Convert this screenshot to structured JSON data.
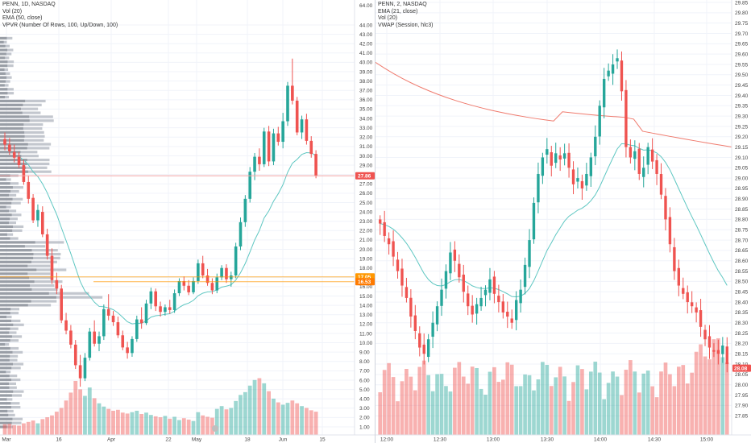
{
  "left_chart": {
    "header": [
      "PENN, 1D, NASDAQ",
      "Vol (20)",
      "EMA (50, close)",
      "VPVR (Number Of Rows, 100, Up/Down, 100)"
    ],
    "price_label": "27.86",
    "orange_label_1": "17.05",
    "orange_label_2": "16.53"
  },
  "right_chart": {
    "header": [
      "PENN, 2, NASDAQ",
      "EMA (21, close)",
      "Vol (20)",
      "VWAP (Session, hlc3)"
    ],
    "price_label": "28.08"
  },
  "colors": {
    "up": "#26a69a",
    "down": "#ef5350",
    "ema": "#5fc7c2",
    "vwap": "#ef7a6d",
    "orange": "#ff9800",
    "vpvr": "#9e9e9e",
    "grid": "#f0f3fa"
  },
  "chart_data": [
    {
      "type": "candlestick",
      "title": "PENN, 1D, NASDAQ",
      "ylim": [
        0,
        65
      ],
      "y_ticks": [
        "1.00",
        "2.00",
        "3.00",
        "4.00",
        "5.00",
        "6.00",
        "7.00",
        "8.00",
        "9.00",
        "10.00",
        "11.00",
        "12.00",
        "13.00",
        "14.00",
        "15.00",
        "16.00",
        "17.00",
        "18.00",
        "19.00",
        "20.00",
        "21.00",
        "22.00",
        "23.00",
        "24.00",
        "25.00",
        "26.00",
        "27.00",
        "28.00",
        "29.00",
        "30.00",
        "31.00",
        "32.00",
        "33.00",
        "34.00",
        "35.00",
        "36.00",
        "37.00",
        "38.00",
        "39.00",
        "40.00",
        "41.00",
        "42.00",
        "43.00",
        "44.00"
      ],
      "y_ticks_compressed_top": [
        "64.00"
      ],
      "x_ticks": [
        "Mar",
        "16",
        "Apr",
        "22",
        "May",
        "18",
        "Jun",
        "15"
      ],
      "candles_ohlc": [
        [
          31.8,
          32.5,
          30.6,
          31.2
        ],
        [
          31.2,
          31.9,
          30.1,
          30.5
        ],
        [
          30.4,
          31.2,
          29.3,
          29.8
        ],
        [
          29.9,
          30.4,
          28.7,
          29.0
        ],
        [
          29.0,
          29.6,
          26.9,
          27.2
        ],
        [
          27.2,
          27.9,
          24.9,
          25.4
        ],
        [
          25.5,
          25.9,
          22.8,
          23.1
        ],
        [
          23.1,
          24.8,
          22.4,
          24.2
        ],
        [
          24.0,
          24.6,
          21.3,
          21.6
        ],
        [
          21.6,
          22.2,
          18.9,
          19.3
        ],
        [
          19.3,
          20.1,
          16.3,
          16.7
        ],
        [
          16.7,
          17.5,
          15.2,
          15.8
        ],
        [
          15.8,
          16.2,
          12.1,
          12.4
        ],
        [
          12.4,
          13.2,
          10.9,
          11.3
        ],
        [
          11.3,
          11.9,
          9.4,
          9.8
        ],
        [
          9.8,
          10.3,
          7.2,
          7.6
        ],
        [
          7.6,
          8.7,
          5.3,
          6.2
        ],
        [
          6.2,
          8.9,
          5.9,
          8.4
        ],
        [
          8.4,
          11.6,
          8.1,
          11.2
        ],
        [
          11.2,
          12.4,
          9.6,
          9.9
        ],
        [
          9.9,
          11.2,
          9.1,
          10.7
        ],
        [
          10.7,
          14.1,
          10.3,
          13.6
        ],
        [
          13.6,
          15.2,
          12.4,
          12.9
        ],
        [
          12.9,
          13.4,
          11.8,
          12.2
        ],
        [
          12.2,
          12.8,
          10.5,
          10.8
        ],
        [
          10.8,
          11.3,
          9.2,
          9.5
        ],
        [
          9.5,
          10.1,
          8.3,
          8.9
        ],
        [
          8.9,
          10.7,
          8.5,
          10.4
        ],
        [
          10.4,
          12.9,
          10.1,
          12.5
        ],
        [
          12.5,
          13.8,
          11.5,
          12.1
        ],
        [
          12.1,
          14.6,
          11.9,
          14.2
        ],
        [
          14.2,
          15.9,
          13.6,
          15.5
        ],
        [
          15.5,
          15.8,
          13.4,
          13.9
        ],
        [
          13.9,
          14.4,
          12.8,
          13.3
        ],
        [
          13.3,
          14.1,
          12.9,
          13.8
        ],
        [
          13.8,
          14.6,
          13.1,
          13.5
        ],
        [
          13.5,
          15.7,
          13.2,
          15.3
        ],
        [
          15.3,
          16.9,
          15.0,
          16.6
        ],
        [
          16.6,
          17.1,
          15.6,
          16.1
        ],
        [
          16.1,
          16.7,
          15.1,
          15.4
        ],
        [
          15.4,
          17.0,
          15.2,
          16.6
        ],
        [
          16.6,
          18.9,
          16.3,
          18.5
        ],
        [
          18.5,
          19.3,
          16.9,
          17.2
        ],
        [
          17.2,
          17.9,
          16.1,
          16.4
        ],
        [
          16.4,
          16.9,
          15.2,
          15.6
        ],
        [
          15.6,
          17.4,
          15.3,
          17.0
        ],
        [
          17.0,
          18.3,
          16.7,
          18.0
        ],
        [
          18.0,
          18.4,
          16.4,
          16.8
        ],
        [
          16.8,
          17.6,
          16.0,
          17.2
        ],
        [
          17.2,
          20.7,
          16.9,
          20.3
        ],
        [
          20.3,
          23.4,
          19.9,
          22.9
        ],
        [
          22.9,
          25.8,
          22.4,
          25.4
        ],
        [
          25.4,
          28.8,
          25.0,
          28.3
        ],
        [
          28.3,
          30.3,
          27.4,
          29.9
        ],
        [
          29.9,
          30.8,
          28.4,
          29.1
        ],
        [
          29.1,
          33.0,
          28.8,
          32.6
        ],
        [
          32.6,
          33.2,
          28.9,
          29.4
        ],
        [
          29.4,
          32.9,
          29.0,
          32.4
        ],
        [
          32.4,
          33.1,
          31.1,
          31.5
        ],
        [
          31.5,
          34.6,
          30.8,
          33.7
        ],
        [
          33.7,
          37.9,
          33.2,
          37.5
        ],
        [
          37.5,
          40.4,
          35.5,
          35.9
        ],
        [
          35.9,
          36.3,
          32.2,
          32.5
        ],
        [
          32.5,
          34.3,
          31.8,
          33.9
        ],
        [
          33.9,
          34.5,
          31.2,
          31.6
        ],
        [
          31.6,
          32.1,
          29.8,
          30.2
        ],
        [
          30.2,
          30.6,
          27.6,
          27.86
        ]
      ],
      "volume_M": [
        2.3,
        2.4,
        2.1,
        2.0,
        2.5,
        2.8,
        3.1,
        2.5,
        3.4,
        3.8,
        4.2,
        5.0,
        5.8,
        7.4,
        9.1,
        11.6,
        9.8,
        8.4,
        10.2,
        7.9,
        6.8,
        6.1,
        5.6,
        5.2,
        5.4,
        4.8,
        4.6,
        4.9,
        5.2,
        4.5,
        4.8,
        4.3,
        4.0,
        3.8,
        4.1,
        3.5,
        3.9,
        3.2,
        3.6,
        3.3,
        3.0,
        4.9,
        4.2,
        3.9,
        3.7,
        5.6,
        6.2,
        5.5,
        5.8,
        7.3,
        8.6,
        9.2,
        10.6,
        11.8,
        12.2,
        11.1,
        9.4,
        7.8,
        7.0,
        6.5,
        6.9,
        7.4,
        6.8,
        6.2,
        5.8,
        5.3,
        5.0
      ]
    },
    {
      "type": "candlestick",
      "title": "PENN, 2, NASDAQ",
      "ylim": [
        27.8,
        29.85
      ],
      "y_ticks": [
        "27.85",
        "27.90",
        "27.95",
        "28.00",
        "28.05",
        "28.10",
        "28.15",
        "28.20",
        "28.25",
        "28.30",
        "28.35",
        "28.40",
        "28.45",
        "28.50",
        "28.55",
        "28.60",
        "28.65",
        "28.70",
        "28.75",
        "28.80",
        "28.85",
        "28.90",
        "28.95",
        "29.00",
        "29.05",
        "29.10",
        "29.15",
        "29.20",
        "29.25",
        "29.30",
        "29.35",
        "29.40",
        "29.45",
        "29.50",
        "29.55",
        "29.60",
        "29.65",
        "29.70",
        "29.75",
        "29.80",
        "29.85"
      ],
      "x_ticks": [
        "12:00",
        "12:30",
        "13:00",
        "13:30",
        "14:00",
        "14:30",
        "15:00"
      ]
    }
  ]
}
